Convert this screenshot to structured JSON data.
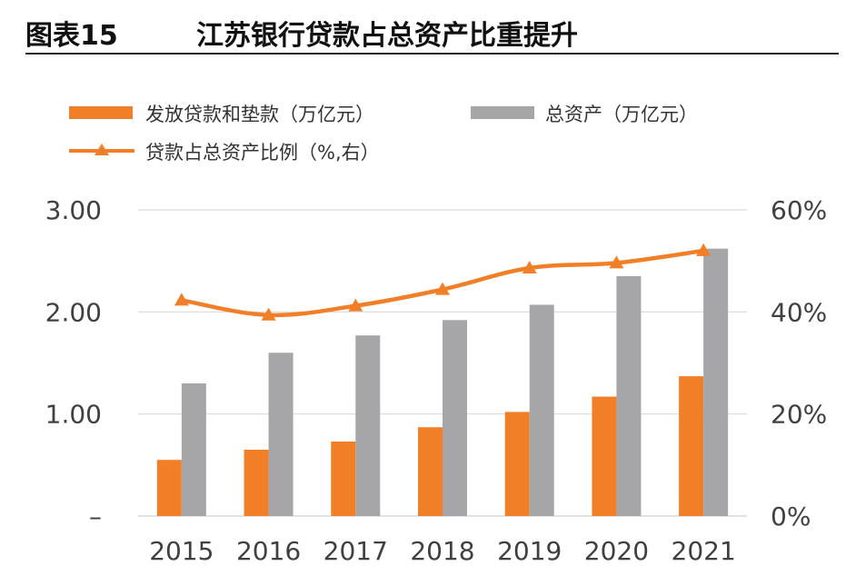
{
  "header": {
    "figure_label": "图表15",
    "title": "江苏银行贷款占总资产比重提升"
  },
  "colors": {
    "loans": "#F07F27",
    "assets": "#A6A6A8",
    "ratio": "#F07F27",
    "grid": "#D9D9D9",
    "axis_text": "#404040"
  },
  "chart_data": {
    "type": "bar",
    "categories": [
      "2015",
      "2016",
      "2017",
      "2018",
      "2019",
      "2020",
      "2021"
    ],
    "series": [
      {
        "name": "发放贷款和垫款（万亿元）",
        "type": "bar",
        "axis": "left",
        "values": [
          0.55,
          0.65,
          0.73,
          0.87,
          1.02,
          1.17,
          1.37
        ]
      },
      {
        "name": "总资产（万亿元）",
        "type": "bar",
        "axis": "left",
        "values": [
          1.3,
          1.6,
          1.77,
          1.92,
          2.07,
          2.35,
          2.62
        ]
      },
      {
        "name": "贷款占总资产比例（%,右）",
        "type": "line",
        "axis": "right",
        "marker": "triangle",
        "values": [
          42.3,
          39.4,
          41.2,
          44.4,
          48.6,
          49.6,
          52.0
        ]
      }
    ],
    "left_axis": {
      "ticks": [
        "–",
        "1.00",
        "2.00",
        "3.00"
      ],
      "ylim": [
        0,
        3
      ]
    },
    "right_axis": {
      "ticks": [
        "0%",
        "20%",
        "40%",
        "60%"
      ],
      "ylim": [
        0,
        60
      ]
    },
    "grid": true,
    "legend_position": "top"
  }
}
